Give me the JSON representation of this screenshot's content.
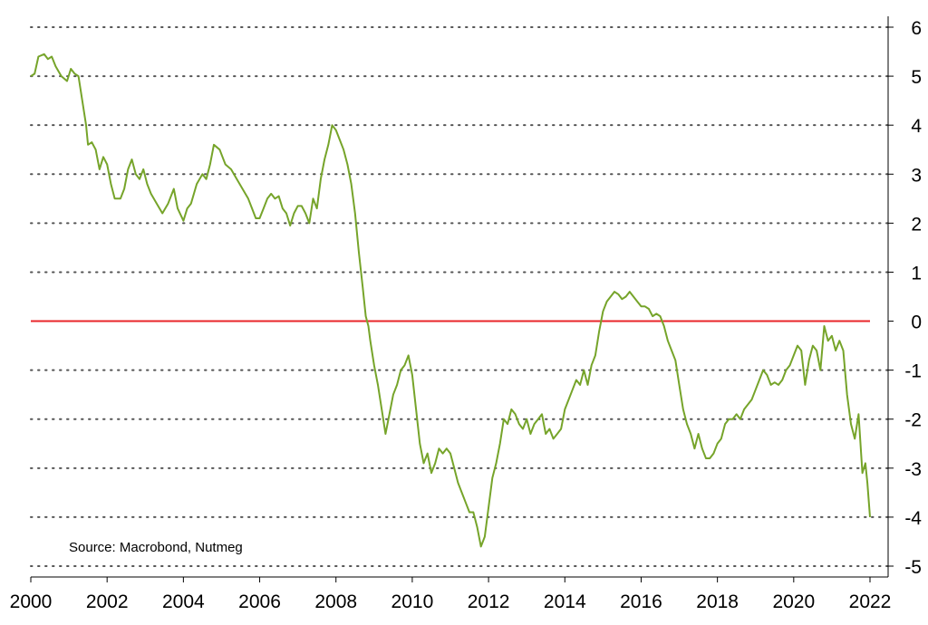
{
  "chart_data": {
    "type": "line",
    "title": "",
    "xlabel": "",
    "ylabel": "",
    "xlim": [
      2000,
      2022
    ],
    "ylim": [
      -5,
      6
    ],
    "x_ticks": [
      2000,
      2002,
      2004,
      2006,
      2008,
      2010,
      2012,
      2014,
      2016,
      2018,
      2020,
      2022
    ],
    "y_ticks": [
      6,
      5,
      4,
      3,
      2,
      1,
      0,
      -1,
      -2,
      -3,
      -4,
      -5
    ],
    "y_axis_side": "right",
    "grid": "horizontal dotted",
    "source_note": "Source: Macrobond, Nutmeg",
    "reference_line": {
      "y": 0,
      "color": "#e8262a"
    },
    "series": [
      {
        "color": "#76a42a",
        "points": [
          [
            2000.0,
            5.0
          ],
          [
            2000.1,
            5.05
          ],
          [
            2000.2,
            5.4
          ],
          [
            2000.35,
            5.45
          ],
          [
            2000.45,
            5.35
          ],
          [
            2000.55,
            5.4
          ],
          [
            2000.65,
            5.2
          ],
          [
            2000.8,
            5.0
          ],
          [
            2000.95,
            4.9
          ],
          [
            2001.05,
            5.15
          ],
          [
            2001.15,
            5.05
          ],
          [
            2001.25,
            5.0
          ],
          [
            2001.35,
            4.5
          ],
          [
            2001.45,
            4.0
          ],
          [
            2001.5,
            3.6
          ],
          [
            2001.6,
            3.65
          ],
          [
            2001.7,
            3.5
          ],
          [
            2001.8,
            3.1
          ],
          [
            2001.9,
            3.35
          ],
          [
            2002.0,
            3.2
          ],
          [
            2002.1,
            2.8
          ],
          [
            2002.2,
            2.5
          ],
          [
            2002.35,
            2.5
          ],
          [
            2002.45,
            2.7
          ],
          [
            2002.55,
            3.1
          ],
          [
            2002.65,
            3.3
          ],
          [
            2002.75,
            3.0
          ],
          [
            2002.85,
            2.9
          ],
          [
            2002.95,
            3.1
          ],
          [
            2003.05,
            2.8
          ],
          [
            2003.15,
            2.6
          ],
          [
            2003.3,
            2.4
          ],
          [
            2003.45,
            2.2
          ],
          [
            2003.6,
            2.4
          ],
          [
            2003.75,
            2.7
          ],
          [
            2003.85,
            2.3
          ],
          [
            2004.0,
            2.05
          ],
          [
            2004.1,
            2.3
          ],
          [
            2004.2,
            2.4
          ],
          [
            2004.35,
            2.8
          ],
          [
            2004.5,
            3.0
          ],
          [
            2004.6,
            2.9
          ],
          [
            2004.7,
            3.2
          ],
          [
            2004.8,
            3.6
          ],
          [
            2004.95,
            3.5
          ],
          [
            2005.1,
            3.2
          ],
          [
            2005.25,
            3.1
          ],
          [
            2005.4,
            2.9
          ],
          [
            2005.55,
            2.7
          ],
          [
            2005.7,
            2.5
          ],
          [
            2005.8,
            2.3
          ],
          [
            2005.9,
            2.1
          ],
          [
            2006.0,
            2.1
          ],
          [
            2006.1,
            2.3
          ],
          [
            2006.2,
            2.5
          ],
          [
            2006.3,
            2.6
          ],
          [
            2006.4,
            2.5
          ],
          [
            2006.5,
            2.55
          ],
          [
            2006.6,
            2.3
          ],
          [
            2006.7,
            2.2
          ],
          [
            2006.8,
            1.95
          ],
          [
            2006.9,
            2.2
          ],
          [
            2007.0,
            2.35
          ],
          [
            2007.1,
            2.35
          ],
          [
            2007.2,
            2.2
          ],
          [
            2007.3,
            2.0
          ],
          [
            2007.4,
            2.5
          ],
          [
            2007.5,
            2.3
          ],
          [
            2007.6,
            2.9
          ],
          [
            2007.7,
            3.3
          ],
          [
            2007.8,
            3.6
          ],
          [
            2007.9,
            4.0
          ],
          [
            2008.0,
            3.9
          ],
          [
            2008.1,
            3.7
          ],
          [
            2008.2,
            3.5
          ],
          [
            2008.3,
            3.2
          ],
          [
            2008.4,
            2.8
          ],
          [
            2008.5,
            2.2
          ],
          [
            2008.6,
            1.4
          ],
          [
            2008.7,
            0.7
          ],
          [
            2008.78,
            0.1
          ],
          [
            2008.85,
            -0.1
          ],
          [
            2008.9,
            -0.4
          ],
          [
            2009.0,
            -0.9
          ],
          [
            2009.1,
            -1.3
          ],
          [
            2009.2,
            -1.8
          ],
          [
            2009.3,
            -2.3
          ],
          [
            2009.4,
            -1.9
          ],
          [
            2009.5,
            -1.5
          ],
          [
            2009.6,
            -1.3
          ],
          [
            2009.7,
            -1.0
          ],
          [
            2009.8,
            -0.9
          ],
          [
            2009.9,
            -0.7
          ],
          [
            2010.0,
            -1.1
          ],
          [
            2010.1,
            -1.8
          ],
          [
            2010.2,
            -2.5
          ],
          [
            2010.3,
            -2.9
          ],
          [
            2010.4,
            -2.7
          ],
          [
            2010.5,
            -3.1
          ],
          [
            2010.6,
            -2.9
          ],
          [
            2010.7,
            -2.6
          ],
          [
            2010.8,
            -2.7
          ],
          [
            2010.9,
            -2.6
          ],
          [
            2011.0,
            -2.7
          ],
          [
            2011.1,
            -3.0
          ],
          [
            2011.2,
            -3.3
          ],
          [
            2011.3,
            -3.5
          ],
          [
            2011.4,
            -3.7
          ],
          [
            2011.5,
            -3.9
          ],
          [
            2011.6,
            -3.9
          ],
          [
            2011.7,
            -4.2
          ],
          [
            2011.8,
            -4.6
          ],
          [
            2011.9,
            -4.4
          ],
          [
            2012.0,
            -3.8
          ],
          [
            2012.1,
            -3.2
          ],
          [
            2012.2,
            -2.9
          ],
          [
            2012.3,
            -2.5
          ],
          [
            2012.4,
            -2.0
          ],
          [
            2012.5,
            -2.1
          ],
          [
            2012.6,
            -1.8
          ],
          [
            2012.7,
            -1.9
          ],
          [
            2012.8,
            -2.1
          ],
          [
            2012.9,
            -2.2
          ],
          [
            2013.0,
            -2.0
          ],
          [
            2013.1,
            -2.3
          ],
          [
            2013.2,
            -2.1
          ],
          [
            2013.3,
            -2.0
          ],
          [
            2013.4,
            -1.9
          ],
          [
            2013.5,
            -2.3
          ],
          [
            2013.6,
            -2.2
          ],
          [
            2013.7,
            -2.4
          ],
          [
            2013.8,
            -2.3
          ],
          [
            2013.9,
            -2.2
          ],
          [
            2014.0,
            -1.8
          ],
          [
            2014.1,
            -1.6
          ],
          [
            2014.2,
            -1.4
          ],
          [
            2014.3,
            -1.2
          ],
          [
            2014.4,
            -1.3
          ],
          [
            2014.5,
            -1.0
          ],
          [
            2014.6,
            -1.3
          ],
          [
            2014.7,
            -0.9
          ],
          [
            2014.8,
            -0.7
          ],
          [
            2014.9,
            -0.2
          ],
          [
            2015.0,
            0.2
          ],
          [
            2015.1,
            0.4
          ],
          [
            2015.2,
            0.5
          ],
          [
            2015.3,
            0.6
          ],
          [
            2015.4,
            0.55
          ],
          [
            2015.5,
            0.45
          ],
          [
            2015.6,
            0.5
          ],
          [
            2015.7,
            0.6
          ],
          [
            2015.8,
            0.5
          ],
          [
            2015.9,
            0.4
          ],
          [
            2016.0,
            0.3
          ],
          [
            2016.1,
            0.3
          ],
          [
            2016.2,
            0.25
          ],
          [
            2016.3,
            0.1
          ],
          [
            2016.4,
            0.15
          ],
          [
            2016.5,
            0.1
          ],
          [
            2016.6,
            -0.1
          ],
          [
            2016.7,
            -0.4
          ],
          [
            2016.8,
            -0.6
          ],
          [
            2016.9,
            -0.8
          ],
          [
            2017.0,
            -1.3
          ],
          [
            2017.1,
            -1.8
          ],
          [
            2017.2,
            -2.1
          ],
          [
            2017.3,
            -2.3
          ],
          [
            2017.4,
            -2.6
          ],
          [
            2017.5,
            -2.3
          ],
          [
            2017.6,
            -2.6
          ],
          [
            2017.7,
            -2.8
          ],
          [
            2017.8,
            -2.8
          ],
          [
            2017.9,
            -2.7
          ],
          [
            2018.0,
            -2.5
          ],
          [
            2018.1,
            -2.4
          ],
          [
            2018.2,
            -2.1
          ],
          [
            2018.3,
            -2.0
          ],
          [
            2018.4,
            -2.0
          ],
          [
            2018.5,
            -1.9
          ],
          [
            2018.6,
            -2.0
          ],
          [
            2018.7,
            -1.8
          ],
          [
            2018.8,
            -1.7
          ],
          [
            2018.9,
            -1.6
          ],
          [
            2019.0,
            -1.4
          ],
          [
            2019.1,
            -1.2
          ],
          [
            2019.2,
            -1.0
          ],
          [
            2019.3,
            -1.1
          ],
          [
            2019.4,
            -1.3
          ],
          [
            2019.5,
            -1.25
          ],
          [
            2019.6,
            -1.3
          ],
          [
            2019.7,
            -1.2
          ],
          [
            2019.8,
            -1.0
          ],
          [
            2019.9,
            -0.9
          ],
          [
            2020.0,
            -0.7
          ],
          [
            2020.1,
            -0.5
          ],
          [
            2020.2,
            -0.6
          ],
          [
            2020.3,
            -1.3
          ],
          [
            2020.4,
            -0.8
          ],
          [
            2020.5,
            -0.5
          ],
          [
            2020.6,
            -0.6
          ],
          [
            2020.7,
            -1.0
          ],
          [
            2020.8,
            -0.1
          ],
          [
            2020.9,
            -0.4
          ],
          [
            2021.0,
            -0.3
          ],
          [
            2021.1,
            -0.6
          ],
          [
            2021.2,
            -0.4
          ],
          [
            2021.3,
            -0.6
          ],
          [
            2021.4,
            -1.5
          ],
          [
            2021.5,
            -2.1
          ],
          [
            2021.6,
            -2.4
          ],
          [
            2021.7,
            -1.9
          ],
          [
            2021.8,
            -3.1
          ],
          [
            2021.88,
            -2.9
          ],
          [
            2021.93,
            -3.3
          ],
          [
            2022.0,
            -4.0
          ]
        ]
      }
    ]
  }
}
